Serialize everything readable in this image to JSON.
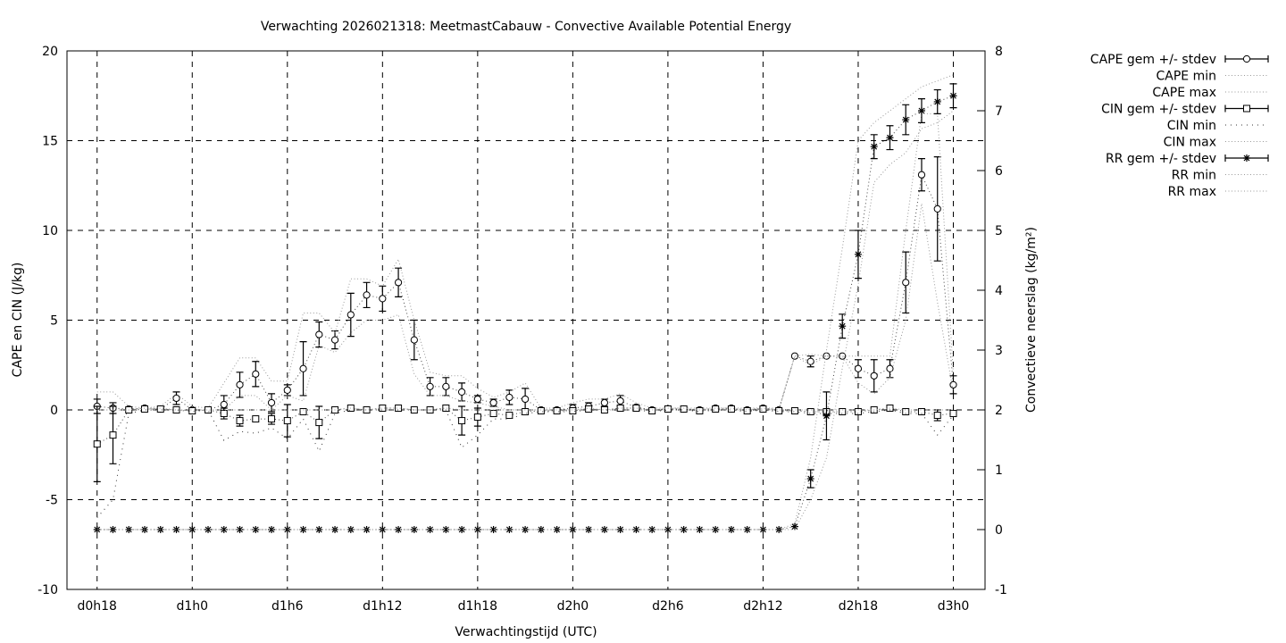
{
  "chart_data": {
    "type": "line",
    "title": "Verwachting 2026021318: MeetmastCabauw - Convective Available Potential Energy",
    "xlabel": "Verwachtingstijd (UTC)",
    "ylabel": "CAPE en CIN (J/kg)",
    "y2label": "Convectieve neerslag (kg/m²)",
    "xlim": [
      16.1,
      74
    ],
    "ylim": [
      -10,
      20
    ],
    "y2lim": [
      -1,
      8
    ],
    "grid": true,
    "legend_position": "outside-right",
    "x_ticks": [
      18,
      24,
      30,
      36,
      42,
      48,
      54,
      60,
      66,
      72
    ],
    "x_tick_labels": [
      "d0h18",
      "d1h0",
      "d1h6",
      "d1h12",
      "d1h18",
      "d2h0",
      "d2h6",
      "d2h12",
      "d2h18",
      "d3h0"
    ],
    "y_ticks": [
      -10,
      -5,
      0,
      5,
      10,
      15,
      20
    ],
    "y2_ticks": [
      -1,
      0,
      1,
      2,
      3,
      4,
      5,
      6,
      7,
      8
    ],
    "x": [
      18,
      19,
      20,
      21,
      22,
      23,
      24,
      25,
      26,
      27,
      28,
      29,
      30,
      31,
      32,
      33,
      34,
      35,
      36,
      37,
      38,
      39,
      40,
      41,
      42,
      43,
      44,
      45,
      46,
      47,
      48,
      49,
      50,
      51,
      52,
      53,
      54,
      55,
      56,
      57,
      58,
      59,
      60,
      61,
      62,
      63,
      64,
      65,
      66,
      67,
      68,
      69,
      70,
      71,
      72
    ],
    "series": [
      {
        "name": "CAPE gem +/- stdev",
        "axis": "y",
        "kind": "errorbar",
        "marker": "circle",
        "values": [
          0.2,
          0.1,
          0.05,
          0.1,
          0.05,
          0.65,
          0,
          0,
          0.3,
          1.4,
          2.0,
          0.4,
          1.1,
          2.3,
          4.2,
          3.9,
          5.3,
          6.4,
          6.2,
          7.1,
          3.9,
          1.3,
          1.3,
          1.0,
          0.6,
          0.4,
          0.7,
          0.6,
          0,
          0,
          0.1,
          0.2,
          0.4,
          0.5,
          0.15,
          0,
          0.05,
          0.05,
          0,
          0.1,
          0.1,
          0,
          0.1,
          0,
          3.0,
          2.7,
          3.0,
          3.0,
          2.3,
          1.9,
          2.3,
          7.1,
          13.1,
          11.2,
          1.4
        ],
        "stdev": [
          0.4,
          0.3,
          0,
          0,
          0,
          0.35,
          0,
          0,
          0.5,
          0.7,
          0.7,
          0.5,
          0.3,
          1.5,
          0.7,
          0.5,
          1.2,
          0.7,
          0.7,
          0.8,
          1.1,
          0.5,
          0.5,
          0.5,
          0.2,
          0.2,
          0.4,
          0.6,
          0,
          0.1,
          0.2,
          0.2,
          0.2,
          0.3,
          0.1,
          0,
          0,
          0,
          0,
          0,
          0,
          0,
          0,
          0,
          0,
          0.3,
          0,
          0,
          0.5,
          0.9,
          0.5,
          1.7,
          0.9,
          2.9,
          0.5
        ]
      },
      {
        "name": "CAPE min",
        "axis": "y",
        "kind": "dotted",
        "values": [
          0,
          0,
          0,
          0,
          0,
          0,
          0,
          0,
          0,
          0.8,
          0.8,
          0,
          0.8,
          0.5,
          3.6,
          3.2,
          4.3,
          5.0,
          5.0,
          5.3,
          2.0,
          0.8,
          0.8,
          0.5,
          0.4,
          0.2,
          0,
          0,
          0,
          0,
          0,
          0,
          0,
          0,
          0,
          0,
          0,
          0,
          0,
          0,
          0,
          0,
          0,
          0,
          3.0,
          2.5,
          3.0,
          3.0,
          1.5,
          0.9,
          1.8,
          5.0,
          11.5,
          6.0,
          1.0
        ]
      },
      {
        "name": "CAPE max",
        "axis": "y",
        "kind": "dotted",
        "values": [
          1.0,
          1.0,
          0.2,
          0.1,
          0.2,
          0.9,
          0.2,
          0.1,
          1.5,
          2.9,
          2.9,
          1.6,
          1.6,
          5.4,
          5.4,
          4.3,
          7.3,
          7.3,
          6.9,
          8.4,
          5.0,
          2.1,
          1.9,
          1.9,
          1.2,
          0.7,
          1.0,
          1.5,
          0.1,
          0.1,
          0.4,
          0.6,
          0.6,
          0.9,
          0.4,
          0.1,
          0.1,
          0.1,
          0.1,
          0.1,
          0.1,
          0.1,
          0.1,
          0.1,
          3.0,
          3.1,
          3.0,
          3.0,
          3.0,
          3.0,
          3.0,
          10.0,
          16.5,
          16.5,
          2.0
        ]
      },
      {
        "name": "CIN gem +/- stdev",
        "axis": "y",
        "kind": "errorbar",
        "marker": "square",
        "values": [
          -1.9,
          -1.4,
          0,
          0.05,
          0.05,
          0,
          -0.05,
          0,
          -0.2,
          -0.6,
          -0.5,
          -0.5,
          -0.6,
          -0.1,
          -0.7,
          0,
          0.1,
          0,
          0.1,
          0.1,
          0,
          0,
          0.1,
          -0.6,
          -0.4,
          -0.2,
          -0.3,
          -0.1,
          -0.05,
          -0.05,
          -0.05,
          0.05,
          0,
          0.1,
          0.1,
          -0.05,
          0.05,
          0.05,
          -0.05,
          0.05,
          0.05,
          -0.05,
          0.05,
          -0.05,
          -0.05,
          -0.1,
          -0.1,
          -0.1,
          -0.1,
          0,
          0.1,
          -0.1,
          -0.1,
          -0.3,
          -0.2
        ],
        "stdev": [
          2.1,
          1.6,
          0,
          0,
          0,
          0,
          0,
          0,
          0.3,
          0.3,
          0,
          0.3,
          0.9,
          0,
          0.9,
          0,
          0,
          0,
          0,
          0,
          0,
          0,
          0,
          0.8,
          0.5,
          0,
          0,
          0,
          0,
          0,
          0,
          0,
          0,
          0,
          0,
          0,
          0,
          0,
          0,
          0,
          0,
          0,
          0,
          0,
          0,
          0,
          0,
          0,
          0,
          0,
          0,
          0,
          0,
          0.3,
          0
        ]
      },
      {
        "name": "CIN min",
        "axis": "y",
        "kind": "dotted-dark",
        "values": [
          -6.0,
          -5.0,
          -0.2,
          0,
          0,
          0,
          -0.1,
          0,
          -1.7,
          -1.2,
          -1.3,
          -1.0,
          -1.6,
          -0.5,
          -2.3,
          -0.2,
          0,
          0,
          0,
          0,
          0,
          0,
          0,
          -2.1,
          -1.4,
          -0.5,
          -0.5,
          -0.2,
          -0.1,
          -0.1,
          -0.1,
          0,
          0,
          0,
          0,
          -0.1,
          0,
          0,
          -0.1,
          0,
          0,
          -0.1,
          0,
          -0.1,
          -0.1,
          -0.2,
          -0.2,
          -0.2,
          -0.2,
          -0.1,
          0,
          -0.2,
          -0.2,
          -1.4,
          -0.3
        ]
      },
      {
        "name": "CIN max",
        "axis": "y",
        "kind": "dotted",
        "values": [
          0,
          0,
          0,
          0.1,
          0.1,
          0,
          0,
          0,
          0,
          0,
          0,
          0,
          0,
          0,
          0,
          0,
          0.1,
          0,
          0.1,
          0.1,
          0,
          0,
          0.1,
          0,
          0,
          0,
          0,
          0,
          0,
          0,
          0,
          0.1,
          0,
          0.1,
          0.1,
          0,
          0.1,
          0.1,
          0,
          0.1,
          0.1,
          0,
          0.1,
          0,
          0,
          0,
          0,
          0,
          0,
          0,
          0.1,
          0,
          0,
          0,
          0
        ]
      },
      {
        "name": "RR gem +/- stdev",
        "axis": "y2",
        "kind": "errorbar",
        "marker": "star",
        "values": [
          0,
          0,
          0,
          0,
          0,
          0,
          0,
          0,
          0,
          0,
          0,
          0,
          0,
          0,
          0,
          0,
          0,
          0,
          0,
          0,
          0,
          0,
          0,
          0,
          0,
          0,
          0,
          0,
          0,
          0,
          0,
          0,
          0,
          0,
          0,
          0,
          0,
          0,
          0,
          0,
          0,
          0,
          0,
          0,
          0.05,
          0.85,
          1.9,
          3.4,
          4.6,
          6.4,
          6.55,
          6.85,
          7.0,
          7.15,
          7.25
        ],
        "stdev": [
          0,
          0,
          0,
          0,
          0,
          0,
          0,
          0,
          0,
          0,
          0,
          0,
          0,
          0,
          0,
          0,
          0,
          0,
          0,
          0,
          0,
          0,
          0,
          0,
          0,
          0,
          0,
          0,
          0,
          0,
          0,
          0,
          0,
          0,
          0,
          0,
          0,
          0,
          0,
          0,
          0,
          0,
          0,
          0,
          0,
          0.15,
          0.4,
          0.2,
          0.4,
          0.2,
          0.2,
          0.25,
          0.2,
          0.2,
          0.2
        ]
      },
      {
        "name": "RR min",
        "axis": "y2",
        "kind": "dotted",
        "values": [
          0,
          0,
          0,
          0,
          0,
          0,
          0,
          0,
          0,
          0,
          0,
          0,
          0,
          0,
          0,
          0,
          0,
          0,
          0,
          0,
          0,
          0,
          0,
          0,
          0,
          0,
          0,
          0,
          0,
          0,
          0,
          0,
          0,
          0,
          0,
          0,
          0,
          0,
          0,
          0,
          0,
          0,
          0,
          0,
          0,
          0.5,
          1.2,
          2.7,
          4.1,
          5.8,
          6.1,
          6.3,
          6.7,
          6.8,
          7.0
        ]
      },
      {
        "name": "RR max",
        "axis": "y2",
        "kind": "dotted",
        "values": [
          0,
          0,
          0,
          0,
          0,
          0,
          0,
          0,
          0,
          0,
          0,
          0,
          0,
          0,
          0,
          0,
          0,
          0,
          0,
          0,
          0,
          0,
          0,
          0,
          0,
          0,
          0,
          0,
          0,
          0,
          0,
          0,
          0,
          0,
          0,
          0,
          0,
          0,
          0,
          0,
          0,
          0,
          0,
          0,
          0.1,
          1.2,
          3.0,
          4.7,
          6.5,
          6.8,
          7.0,
          7.2,
          7.4,
          7.5,
          7.6
        ]
      }
    ]
  }
}
